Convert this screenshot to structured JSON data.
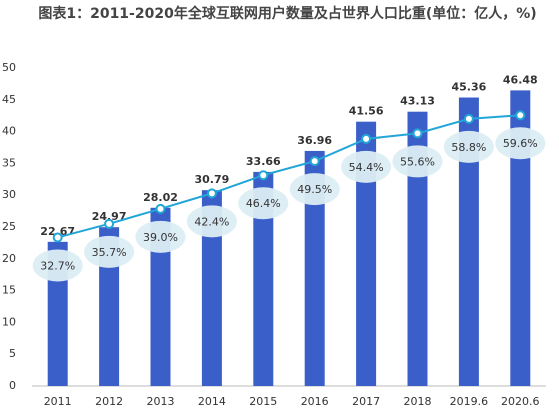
{
  "chart_data": {
    "type": "bar",
    "title": "图表1：2011-2020年全球互联网用户数量及占世界人口比重(单位：亿人，%)",
    "categories": [
      "2011",
      "2012",
      "2013",
      "2014",
      "2015",
      "2016",
      "2017",
      "2018",
      "2019.6",
      "2020.6"
    ],
    "series": [
      {
        "type": "bar",
        "color": "#3b5fc9",
        "values": [
          22.67,
          24.97,
          28.02,
          30.79,
          33.66,
          36.96,
          41.56,
          43.13,
          45.36,
          46.48
        ]
      },
      {
        "type": "line",
        "axis": "y2",
        "color": "#22a6d8",
        "values": [
          32.7,
          35.7,
          39.0,
          42.4,
          46.4,
          49.5,
          54.4,
          55.6,
          58.8,
          59.6
        ],
        "value_labels": [
          "32.7%",
          "35.7%",
          "39.0%",
          "42.4%",
          "46.4%",
          "49.5%",
          "54.4%",
          "55.6%",
          "58.8%",
          "59.6%"
        ]
      }
    ],
    "ylim": [
      0,
      50
    ],
    "yticks": [
      0,
      5,
      10,
      15,
      20,
      25,
      30,
      35,
      40,
      45,
      50
    ],
    "y2lim": [
      0,
      70
    ]
  }
}
